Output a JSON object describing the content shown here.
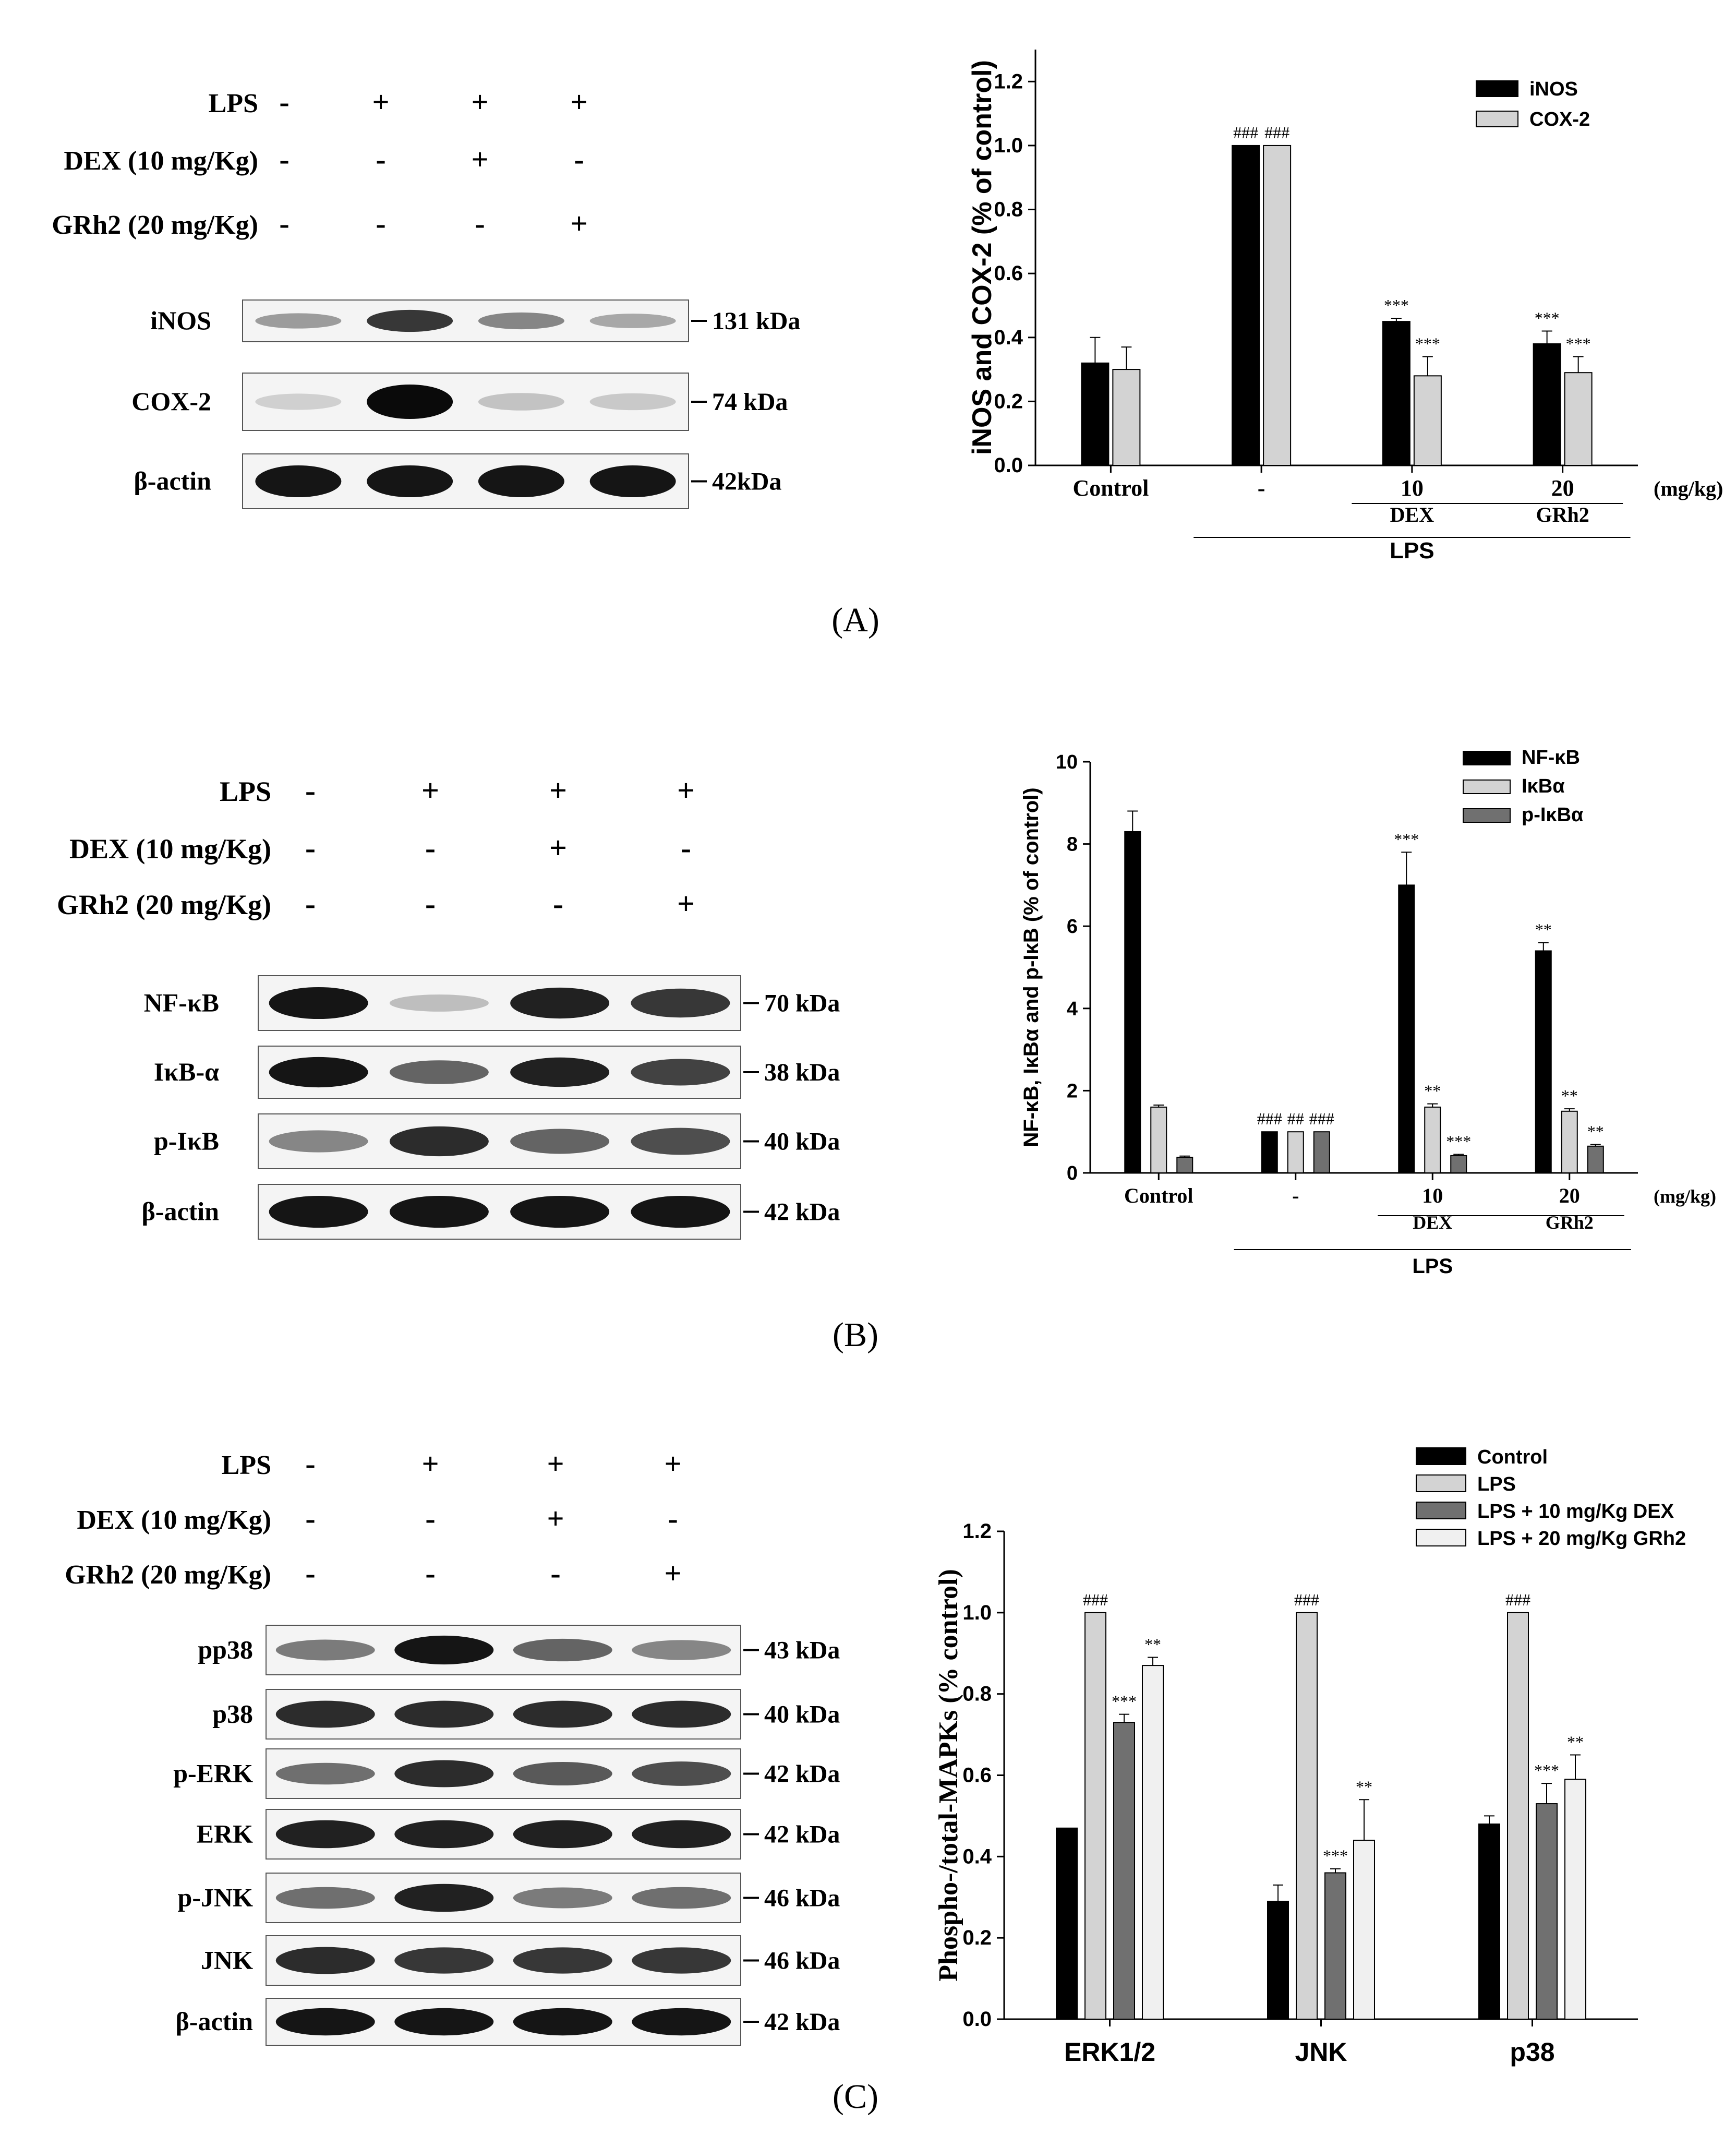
{
  "panels": [
    {
      "id": "A",
      "label": "(A)",
      "blot": {
        "treatments": [
          {
            "name": "LPS",
            "signs": [
              "-",
              "+",
              "+",
              "+"
            ]
          },
          {
            "name": "DEX (10 mg/Kg)",
            "signs": [
              "-",
              "-",
              "+",
              "-"
            ]
          },
          {
            "name": "GRh2 (20 mg/Kg)",
            "signs": [
              "-",
              "-",
              "-",
              "+"
            ]
          }
        ],
        "rows": [
          {
            "protein": "iNOS",
            "kda": "131 kDa",
            "intensity": [
              0.35,
              0.8,
              0.45,
              0.3
            ]
          },
          {
            "protein": "COX-2",
            "kda": "74 kDa",
            "intensity": [
              0.12,
              1.0,
              0.18,
              0.15
            ]
          },
          {
            "protein": "β-actin",
            "kda": "42kDa",
            "intensity": [
              0.95,
              0.95,
              0.95,
              0.95
            ]
          }
        ]
      },
      "chart_data": {
        "type": "bar",
        "categories": [
          "Control",
          "-",
          "10",
          "20"
        ],
        "unit_label": "(mg/kg)",
        "group_labels": [
          {
            "text": "DEX",
            "category": 2
          },
          {
            "text": "GRh2",
            "category": 3
          }
        ],
        "bracket_label": "LPS",
        "ylabel": "iNOS and COX-2 (% of control)",
        "ylim": [
          0,
          1.3
        ],
        "yticks": [
          "0.0",
          "0.2",
          "0.4",
          "0.6",
          "0.8",
          "1.0",
          "1.2"
        ],
        "legend_position": "top-right",
        "series": [
          {
            "name": "iNOS",
            "color": "#000000",
            "values": [
              0.32,
              1.0,
              0.45,
              0.38
            ],
            "errors": [
              0.08,
              0,
              0.01,
              0.04
            ],
            "marks": [
              "",
              "###",
              "***",
              "***"
            ]
          },
          {
            "name": "COX-2",
            "color": "#d3d3d3",
            "values": [
              0.3,
              1.0,
              0.28,
              0.29
            ],
            "errors": [
              0.07,
              0,
              0.06,
              0.05
            ],
            "marks": [
              "",
              "###",
              "***",
              "***"
            ]
          }
        ]
      }
    },
    {
      "id": "B",
      "label": "(B)",
      "blot": {
        "treatments": [
          {
            "name": "LPS",
            "signs": [
              "-",
              "+",
              "+",
              "+"
            ]
          },
          {
            "name": "DEX (10 mg/Kg)",
            "signs": [
              "-",
              "-",
              "+",
              "-"
            ]
          },
          {
            "name": "GRh2 (20 mg/Kg)",
            "signs": [
              "-",
              "-",
              "-",
              "+"
            ]
          }
        ],
        "rows": [
          {
            "protein": "NF-κB",
            "kda": "70 kDa",
            "intensity": [
              0.95,
              0.2,
              0.9,
              0.8
            ]
          },
          {
            "protein": "IκB-α",
            "kda": "38 kDa",
            "intensity": [
              0.95,
              0.6,
              0.9,
              0.75
            ]
          },
          {
            "protein": "p-IκB",
            "kda": "40 kDa",
            "intensity": [
              0.45,
              0.85,
              0.6,
              0.7
            ]
          },
          {
            "protein": "β-actin",
            "kda": "42 kDa",
            "intensity": [
              0.95,
              0.95,
              0.95,
              0.95
            ]
          }
        ]
      },
      "chart_data": {
        "type": "bar",
        "categories": [
          "Control",
          "-",
          "10",
          "20"
        ],
        "unit_label": "(mg/kg)",
        "group_labels": [
          {
            "text": "DEX",
            "category": 2
          },
          {
            "text": "GRh2",
            "category": 3
          }
        ],
        "bracket_label": "LPS",
        "ylabel": "NF-κB, IκBα and p-IκB (% of control)",
        "ylim": [
          0,
          10
        ],
        "yticks": [
          "0",
          "2",
          "4",
          "6",
          "8",
          "10"
        ],
        "legend_position": "top-right",
        "series": [
          {
            "name": "NF-κB",
            "color": "#000000",
            "values": [
              8.3,
              1.0,
              7.0,
              5.4
            ],
            "errors": [
              0.5,
              0,
              0.8,
              0.2
            ],
            "marks": [
              "",
              "###",
              "***",
              "**"
            ]
          },
          {
            "name": "IκBα",
            "color": "#d3d3d3",
            "values": [
              1.6,
              1.0,
              1.6,
              1.5
            ],
            "errors": [
              0.05,
              0,
              0.08,
              0.06
            ],
            "marks": [
              "",
              "##",
              "**",
              "**"
            ]
          },
          {
            "name": "p-IκBα",
            "color": "#707070",
            "values": [
              0.38,
              1.0,
              0.42,
              0.65
            ],
            "errors": [
              0.03,
              0,
              0.03,
              0.04
            ],
            "marks": [
              "",
              "###",
              "***",
              "**"
            ]
          }
        ]
      }
    },
    {
      "id": "C",
      "label": "(C)",
      "blot": {
        "treatments": [
          {
            "name": "LPS",
            "signs": [
              "-",
              "+",
              "+",
              "+"
            ]
          },
          {
            "name": "DEX (10 mg/Kg)",
            "signs": [
              "-",
              "-",
              "+",
              "-"
            ]
          },
          {
            "name": "GRh2 (20 mg/Kg)",
            "signs": [
              "-",
              "-",
              "-",
              "+"
            ]
          }
        ],
        "rows": [
          {
            "protein": "pp38",
            "kda": "43 kDa",
            "intensity": [
              0.5,
              0.95,
              0.6,
              0.45
            ]
          },
          {
            "protein": "p38",
            "kda": "40 kDa",
            "intensity": [
              0.85,
              0.85,
              0.85,
              0.85
            ]
          },
          {
            "protein": "p-ERK",
            "kda": "42 kDa",
            "intensity": [
              0.55,
              0.85,
              0.65,
              0.7
            ]
          },
          {
            "protein": "ERK",
            "kda": "42 kDa",
            "intensity": [
              0.9,
              0.9,
              0.9,
              0.9
            ]
          },
          {
            "protein": "p-JNK",
            "kda": "46 kDa",
            "intensity": [
              0.55,
              0.9,
              0.5,
              0.55
            ]
          },
          {
            "protein": "JNK",
            "kda": "46 kDa",
            "intensity": [
              0.85,
              0.8,
              0.8,
              0.8
            ]
          },
          {
            "protein": "β-actin",
            "kda": "42 kDa",
            "intensity": [
              0.95,
              0.95,
              0.95,
              0.95
            ]
          }
        ]
      },
      "chart_data": {
        "type": "bar",
        "categories": [
          "ERK1/2",
          "JNK",
          "p38"
        ],
        "ylabel": "Phospho-/total-MAPKs (% control)",
        "ylim": [
          0,
          1.2
        ],
        "yticks": [
          "0.0",
          "0.2",
          "0.4",
          "0.6",
          "0.8",
          "1.0",
          "1.2"
        ],
        "legend_position": "top-right",
        "series": [
          {
            "name": "Control",
            "color": "#000000",
            "values": [
              0.47,
              0.29,
              0.48
            ],
            "errors": [
              0,
              0.04,
              0.02
            ],
            "marks": [
              "",
              "",
              ""
            ]
          },
          {
            "name": "LPS",
            "color": "#d3d3d3",
            "values": [
              1.0,
              1.0,
              1.0
            ],
            "errors": [
              0,
              0,
              0
            ],
            "marks": [
              "###",
              "###",
              "###"
            ]
          },
          {
            "name": "LPS + 10 mg/Kg DEX",
            "color": "#707070",
            "values": [
              0.73,
              0.36,
              0.53
            ],
            "errors": [
              0.02,
              0.01,
              0.05
            ],
            "marks": [
              "***",
              "***",
              "***"
            ]
          },
          {
            "name": "LPS + 20 mg/Kg GRh2",
            "color": "#f0f0f0",
            "values": [
              0.87,
              0.44,
              0.59
            ],
            "errors": [
              0.02,
              0.1,
              0.06
            ],
            "marks": [
              "**",
              "**",
              "**"
            ]
          }
        ]
      }
    }
  ]
}
